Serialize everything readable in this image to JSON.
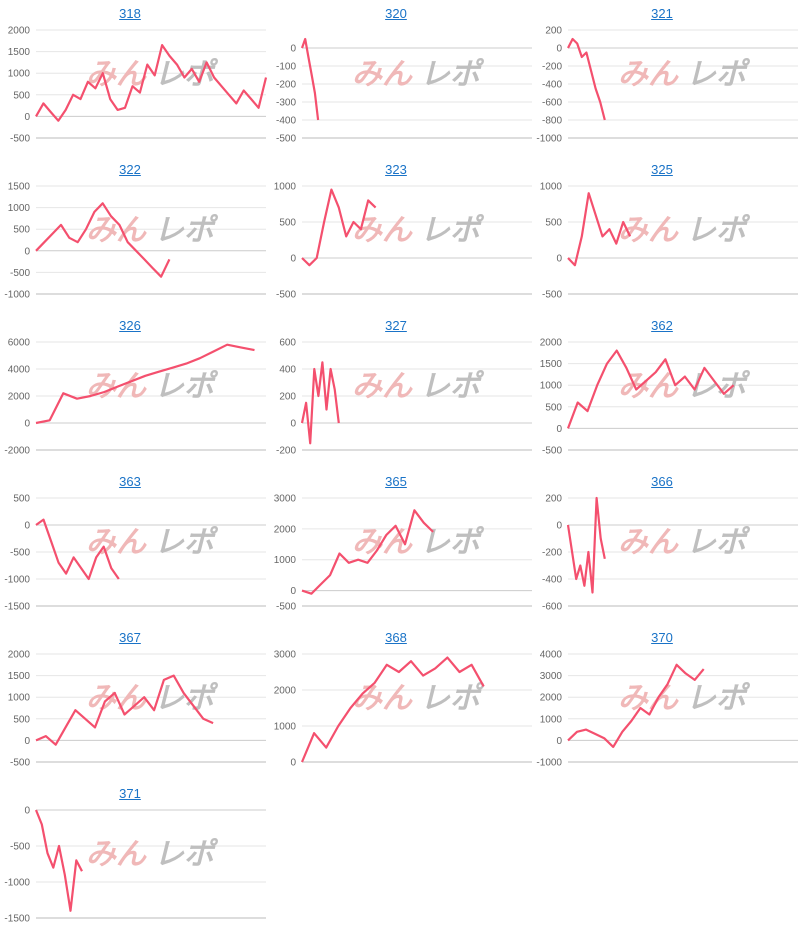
{
  "watermark": {
    "pink": "みん",
    "gray": "レポ"
  },
  "colors": {
    "line": "#f4506e",
    "grid": "#e6e6e6",
    "axis": "#bbbbbb",
    "title": "#1a73c7",
    "wm_pink": "#f0b8b8",
    "wm_gray": "#bfbfbf"
  },
  "chart_data": [
    {
      "type": "line",
      "title": "318",
      "ylim": [
        -500,
        2000
      ],
      "yticks": [
        2000,
        1500,
        1000,
        500,
        0,
        -500
      ],
      "grid": true,
      "x_extent": 230,
      "y": [
        0,
        300,
        100,
        -100,
        150,
        500,
        400,
        800,
        650,
        1000,
        400,
        150,
        200,
        700,
        550,
        1200,
        950,
        1650,
        1400,
        1200,
        900,
        1100,
        800,
        1250,
        900,
        700,
        500,
        300,
        600,
        400,
        200,
        900
      ]
    },
    {
      "type": "line",
      "title": "320",
      "ylim": [
        -500,
        100
      ],
      "yticks": [
        0,
        -100,
        -200,
        -300,
        -400,
        -500
      ],
      "grid": true,
      "x_extent": 230,
      "y": [
        0,
        50,
        -50,
        -150,
        -250,
        -400
      ]
    },
    {
      "type": "line",
      "title": "321",
      "ylim": [
        -1000,
        200
      ],
      "yticks": [
        200,
        0,
        -200,
        -400,
        -600,
        -800,
        -1000
      ],
      "grid": true,
      "x_extent": 230,
      "y": [
        0,
        100,
        50,
        -100,
        -50,
        -250,
        -450,
        -600,
        -800
      ]
    },
    {
      "type": "line",
      "title": "322",
      "ylim": [
        -1000,
        1500
      ],
      "yticks": [
        1500,
        1000,
        500,
        0,
        -500,
        -1000
      ],
      "grid": true,
      "x_extent": 230,
      "y": [
        0,
        200,
        400,
        600,
        300,
        200,
        500,
        900,
        1100,
        800,
        600,
        200,
        0,
        -200,
        -400,
        -600,
        -200
      ]
    },
    {
      "type": "line",
      "title": "323",
      "ylim": [
        -500,
        1000
      ],
      "yticks": [
        1000,
        500,
        0,
        -500
      ],
      "grid": true,
      "x_extent": 230,
      "y": [
        0,
        -100,
        0,
        500,
        950,
        700,
        300,
        500,
        400,
        800,
        700
      ]
    },
    {
      "type": "line",
      "title": "325",
      "ylim": [
        -500,
        1000
      ],
      "yticks": [
        1000,
        500,
        0,
        -500
      ],
      "grid": true,
      "x_extent": 230,
      "y": [
        0,
        -100,
        300,
        900,
        600,
        300,
        400,
        200,
        500,
        300
      ]
    },
    {
      "type": "line",
      "title": "326",
      "ylim": [
        -2000,
        6000
      ],
      "yticks": [
        6000,
        4000,
        2000,
        0,
        -2000
      ],
      "grid": true,
      "x_extent": 230,
      "y": [
        0,
        200,
        2200,
        1800,
        2000,
        2300,
        2700,
        3100,
        3500,
        3800,
        4100,
        4400,
        4800,
        5300,
        5800,
        5600,
        5400
      ]
    },
    {
      "type": "line",
      "title": "327",
      "ylim": [
        -200,
        600
      ],
      "yticks": [
        600,
        400,
        200,
        0,
        -200
      ],
      "grid": true,
      "x_extent": 230,
      "y": [
        0,
        150,
        -150,
        400,
        200,
        450,
        100,
        400,
        250,
        0
      ]
    },
    {
      "type": "line",
      "title": "362",
      "ylim": [
        -500,
        2000
      ],
      "yticks": [
        2000,
        1500,
        1000,
        500,
        0,
        -500
      ],
      "grid": true,
      "x_extent": 230,
      "y": [
        0,
        600,
        400,
        1000,
        1500,
        1800,
        1400,
        900,
        1100,
        1300,
        1600,
        1000,
        1200,
        900,
        1400,
        1100,
        800,
        1000
      ]
    },
    {
      "type": "line",
      "title": "363",
      "ylim": [
        -1500,
        500
      ],
      "yticks": [
        500,
        0,
        -500,
        -1000,
        -1500
      ],
      "grid": true,
      "x_extent": 230,
      "y": [
        0,
        100,
        -300,
        -700,
        -900,
        -600,
        -800,
        -1000,
        -600,
        -400,
        -800,
        -1000
      ]
    },
    {
      "type": "line",
      "title": "365",
      "ylim": [
        -500,
        3000
      ],
      "yticks": [
        3000,
        2000,
        1000,
        0,
        -500
      ],
      "grid": true,
      "x_extent": 230,
      "y": [
        0,
        -100,
        200,
        500,
        1200,
        900,
        1000,
        900,
        1300,
        1800,
        2100,
        1500,
        2600,
        2200,
        1900
      ]
    },
    {
      "type": "line",
      "title": "366",
      "ylim": [
        -600,
        200
      ],
      "yticks": [
        200,
        0,
        -200,
        -400,
        -600
      ],
      "grid": true,
      "x_extent": 230,
      "y": [
        0,
        -200,
        -400,
        -300,
        -450,
        -200,
        -500,
        200,
        -100,
        -250
      ]
    },
    {
      "type": "line",
      "title": "367",
      "ylim": [
        -500,
        2000
      ],
      "yticks": [
        2000,
        1500,
        1000,
        500,
        0,
        -500
      ],
      "grid": true,
      "x_extent": 230,
      "y": [
        0,
        100,
        -100,
        300,
        700,
        500,
        300,
        900,
        1100,
        600,
        800,
        1000,
        700,
        1400,
        1500,
        1100,
        800,
        500,
        400
      ]
    },
    {
      "type": "line",
      "title": "368",
      "ylim": [
        0,
        3000
      ],
      "yticks": [
        3000,
        2000,
        1000,
        0
      ],
      "grid": true,
      "x_extent": 230,
      "y": [
        0,
        800,
        400,
        1000,
        1500,
        1900,
        2200,
        2700,
        2500,
        2800,
        2400,
        2600,
        2900,
        2500,
        2700,
        2100
      ]
    },
    {
      "type": "line",
      "title": "370",
      "ylim": [
        -1000,
        4000
      ],
      "yticks": [
        4000,
        3000,
        2000,
        1000,
        0,
        -1000
      ],
      "grid": true,
      "x_extent": 230,
      "y": [
        0,
        400,
        500,
        300,
        100,
        -300,
        400,
        900,
        1500,
        1200,
        2000,
        2600,
        3500,
        3100,
        2800,
        3300
      ]
    },
    {
      "type": "line",
      "title": "371",
      "ylim": [
        -1500,
        0
      ],
      "yticks": [
        0,
        -500,
        -1000,
        -1500
      ],
      "grid": true,
      "x_extent": 230,
      "y": [
        0,
        -200,
        -600,
        -800,
        -500,
        -900,
        -1400,
        -700,
        -850
      ]
    }
  ]
}
